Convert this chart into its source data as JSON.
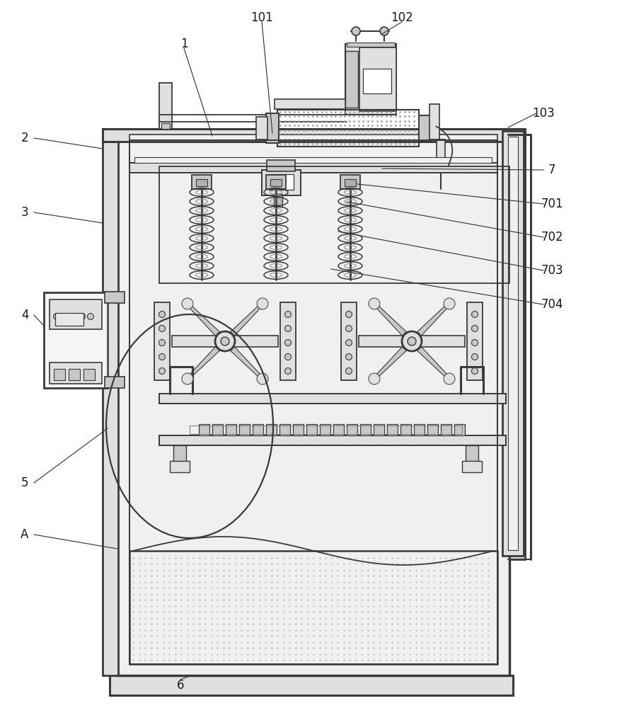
{
  "bg": "#ffffff",
  "lc": "#3a3a3a",
  "g1": "#f0f0f0",
  "g2": "#e0e0e0",
  "g3": "#c8c8c8",
  "g4": "#b0b0b0",
  "dot": "#aaaaaa",
  "fs": 12
}
